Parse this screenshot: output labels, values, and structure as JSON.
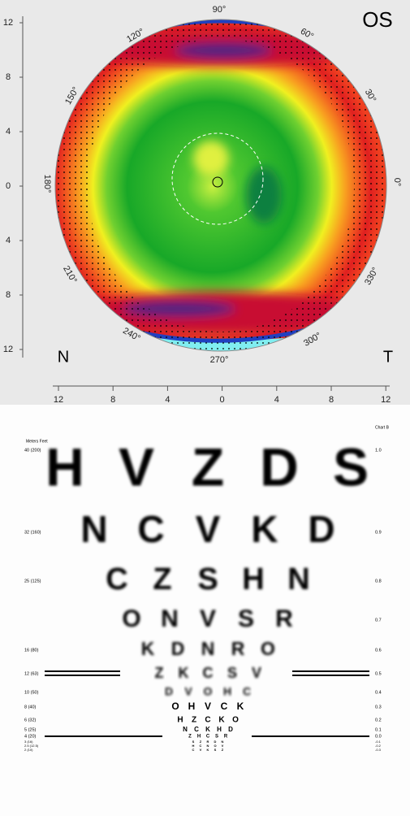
{
  "topography": {
    "eye": "OS",
    "nasal": "N",
    "temporal": "T",
    "y_axis_labels": [
      "12",
      "8",
      "4",
      "0",
      "4",
      "8",
      "12"
    ],
    "x_axis_labels": [
      "12",
      "8",
      "4",
      "0",
      "4",
      "8",
      "12"
    ],
    "angle_labels": [
      "90°",
      "60°",
      "30°",
      "0°",
      "330°",
      "300°",
      "270°",
      "240°",
      "210°",
      "180°",
      "150°",
      "120°"
    ]
  },
  "acuity_chart": {
    "header_left": "Meters  Feet",
    "header_right": "Chart B",
    "rows": [
      {
        "distance": "40 (200)",
        "letters": [
          "H",
          "V",
          "Z",
          "D",
          "S"
        ],
        "logmar": "1.0"
      },
      {
        "distance": "32 (160)",
        "letters": [
          "N",
          "C",
          "V",
          "K",
          "D"
        ],
        "logmar": "0.9"
      },
      {
        "distance": "25 (125)",
        "letters": [
          "C",
          "Z",
          "S",
          "H",
          "N"
        ],
        "logmar": "0.8"
      },
      {
        "letters": [
          "O",
          "N",
          "V",
          "S",
          "R"
        ],
        "logmar": "0.7"
      },
      {
        "distance": "16 (80)",
        "letters": [
          "K",
          "D",
          "N",
          "R",
          "O"
        ],
        "logmar": "0.6"
      },
      {
        "distance": "12 (63)",
        "letters": [
          "Z",
          "K",
          "C",
          "S",
          "V"
        ],
        "logmar": "0.5"
      },
      {
        "distance": "10 (50)",
        "letters": [
          "D",
          "V",
          "O",
          "H",
          "C"
        ],
        "logmar": "0.4"
      },
      {
        "distance": "8 (40)",
        "letters": [
          "O",
          "H",
          "V",
          "C",
          "K"
        ],
        "logmar": "0.3"
      },
      {
        "distance": "6 (32)",
        "letters": [
          "H",
          "Z",
          "C",
          "K",
          "O"
        ],
        "logmar": "0.2"
      },
      {
        "distance": "5 (25)",
        "letters": [
          "N",
          "C",
          "K",
          "H",
          "D"
        ],
        "logmar": "0.1"
      },
      {
        "distance": "4 (20)",
        "letters": [
          "Z",
          "H",
          "C",
          "S",
          "R"
        ],
        "logmar": "0.0"
      },
      {
        "distance": "3 (16)",
        "letters": [
          "S",
          "Z",
          "R",
          "D",
          "N"
        ],
        "logmar": "-0.1"
      },
      {
        "distance": "2.5 (12.5)",
        "letters": [
          "H",
          "C",
          "N",
          "O",
          "V"
        ],
        "logmar": "-0.2"
      },
      {
        "distance": "2 (10)",
        "letters": [
          "C",
          "V",
          "K",
          "S",
          "Z"
        ],
        "logmar": "-0.3"
      }
    ]
  }
}
